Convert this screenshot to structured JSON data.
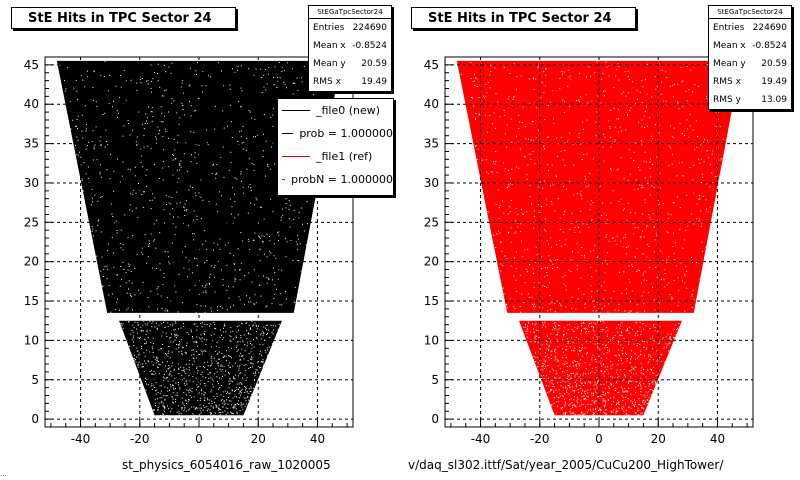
{
  "panels": [
    {
      "title": "StE Hits in TPC Sector 24",
      "stats": {
        "name": "StEGaTpcSector24",
        "rows": [
          {
            "k": "Entries",
            "v": "224690"
          },
          {
            "k": "Mean x",
            "v": "-0.8524"
          },
          {
            "k": "Mean y",
            "v": "20.59"
          },
          {
            "k": "RMS x",
            "v": "19.49"
          }
        ]
      },
      "footer": "st_physics_6054016_raw_1020005",
      "color": "#000000"
    },
    {
      "title": "StE Hits in TPC Sector 24",
      "stats": {
        "name": "StEGaTpcSector24",
        "rows": [
          {
            "k": "Entries",
            "v": "224690"
          },
          {
            "k": "Mean x",
            "v": "-0.8524"
          },
          {
            "k": "Mean y",
            "v": "20.59"
          },
          {
            "k": "RMS x",
            "v": "19.49"
          },
          {
            "k": "RMS y",
            "v": "13.09"
          }
        ]
      },
      "footer": "v/daq_sl302.ittf/Sat/year_2005/CuCu200_HighTower/",
      "color": "#ff0000"
    }
  ],
  "legend": [
    {
      "label": "_file0 (new)",
      "color": "#000000"
    },
    {
      "label": "prob = 1.000000",
      "color": "#000000"
    },
    {
      "label": "_file1 (ref)",
      "color": "#ff0000"
    },
    {
      "label": "probN = 1.000000",
      "color": "#ff0000"
    }
  ],
  "corner_note": "...",
  "chart_data": [
    {
      "type": "heatmap",
      "title": "StE Hits in TPC Sector 24",
      "xlim": [
        -52,
        52
      ],
      "ylim": [
        -1,
        46
      ],
      "xticks": [
        -40,
        -20,
        0,
        20,
        40
      ],
      "yticks": [
        0,
        5,
        10,
        15,
        20,
        25,
        30,
        35,
        40,
        45
      ],
      "grid": true,
      "color": "#000000",
      "regions": [
        {
          "y_from": 13.5,
          "y_to": 45.5,
          "x_left_at_bottom": -31,
          "x_right_at_bottom": 32,
          "x_left_at_top": -48,
          "x_right_at_top": 48
        },
        {
          "y_from": 0.5,
          "y_to": 12.5,
          "x_left_at_bottom": -15,
          "x_right_at_bottom": 15,
          "x_left_at_top": -27,
          "x_right_at_top": 28
        }
      ],
      "entries": 224690,
      "mean_x": -0.8524,
      "mean_y": 20.59,
      "rms_x": 19.49
    },
    {
      "type": "heatmap",
      "title": "StE Hits in TPC Sector 24",
      "xlim": [
        -52,
        52
      ],
      "ylim": [
        -1,
        46
      ],
      "xticks": [
        -40,
        -20,
        0,
        20,
        40
      ],
      "yticks": [
        0,
        5,
        10,
        15,
        20,
        25,
        30,
        35,
        40,
        45
      ],
      "grid": true,
      "color": "#ff0000",
      "regions": [
        {
          "y_from": 13.5,
          "y_to": 45.5,
          "x_left_at_bottom": -31,
          "x_right_at_bottom": 32,
          "x_left_at_top": -48,
          "x_right_at_top": 48
        },
        {
          "y_from": 0.5,
          "y_to": 12.5,
          "x_left_at_bottom": -15,
          "x_right_at_bottom": 15,
          "x_left_at_top": -27,
          "x_right_at_top": 28
        }
      ],
      "entries": 224690,
      "mean_x": -0.8524,
      "mean_y": 20.59,
      "rms_x": 19.49,
      "rms_y": 13.09
    }
  ]
}
